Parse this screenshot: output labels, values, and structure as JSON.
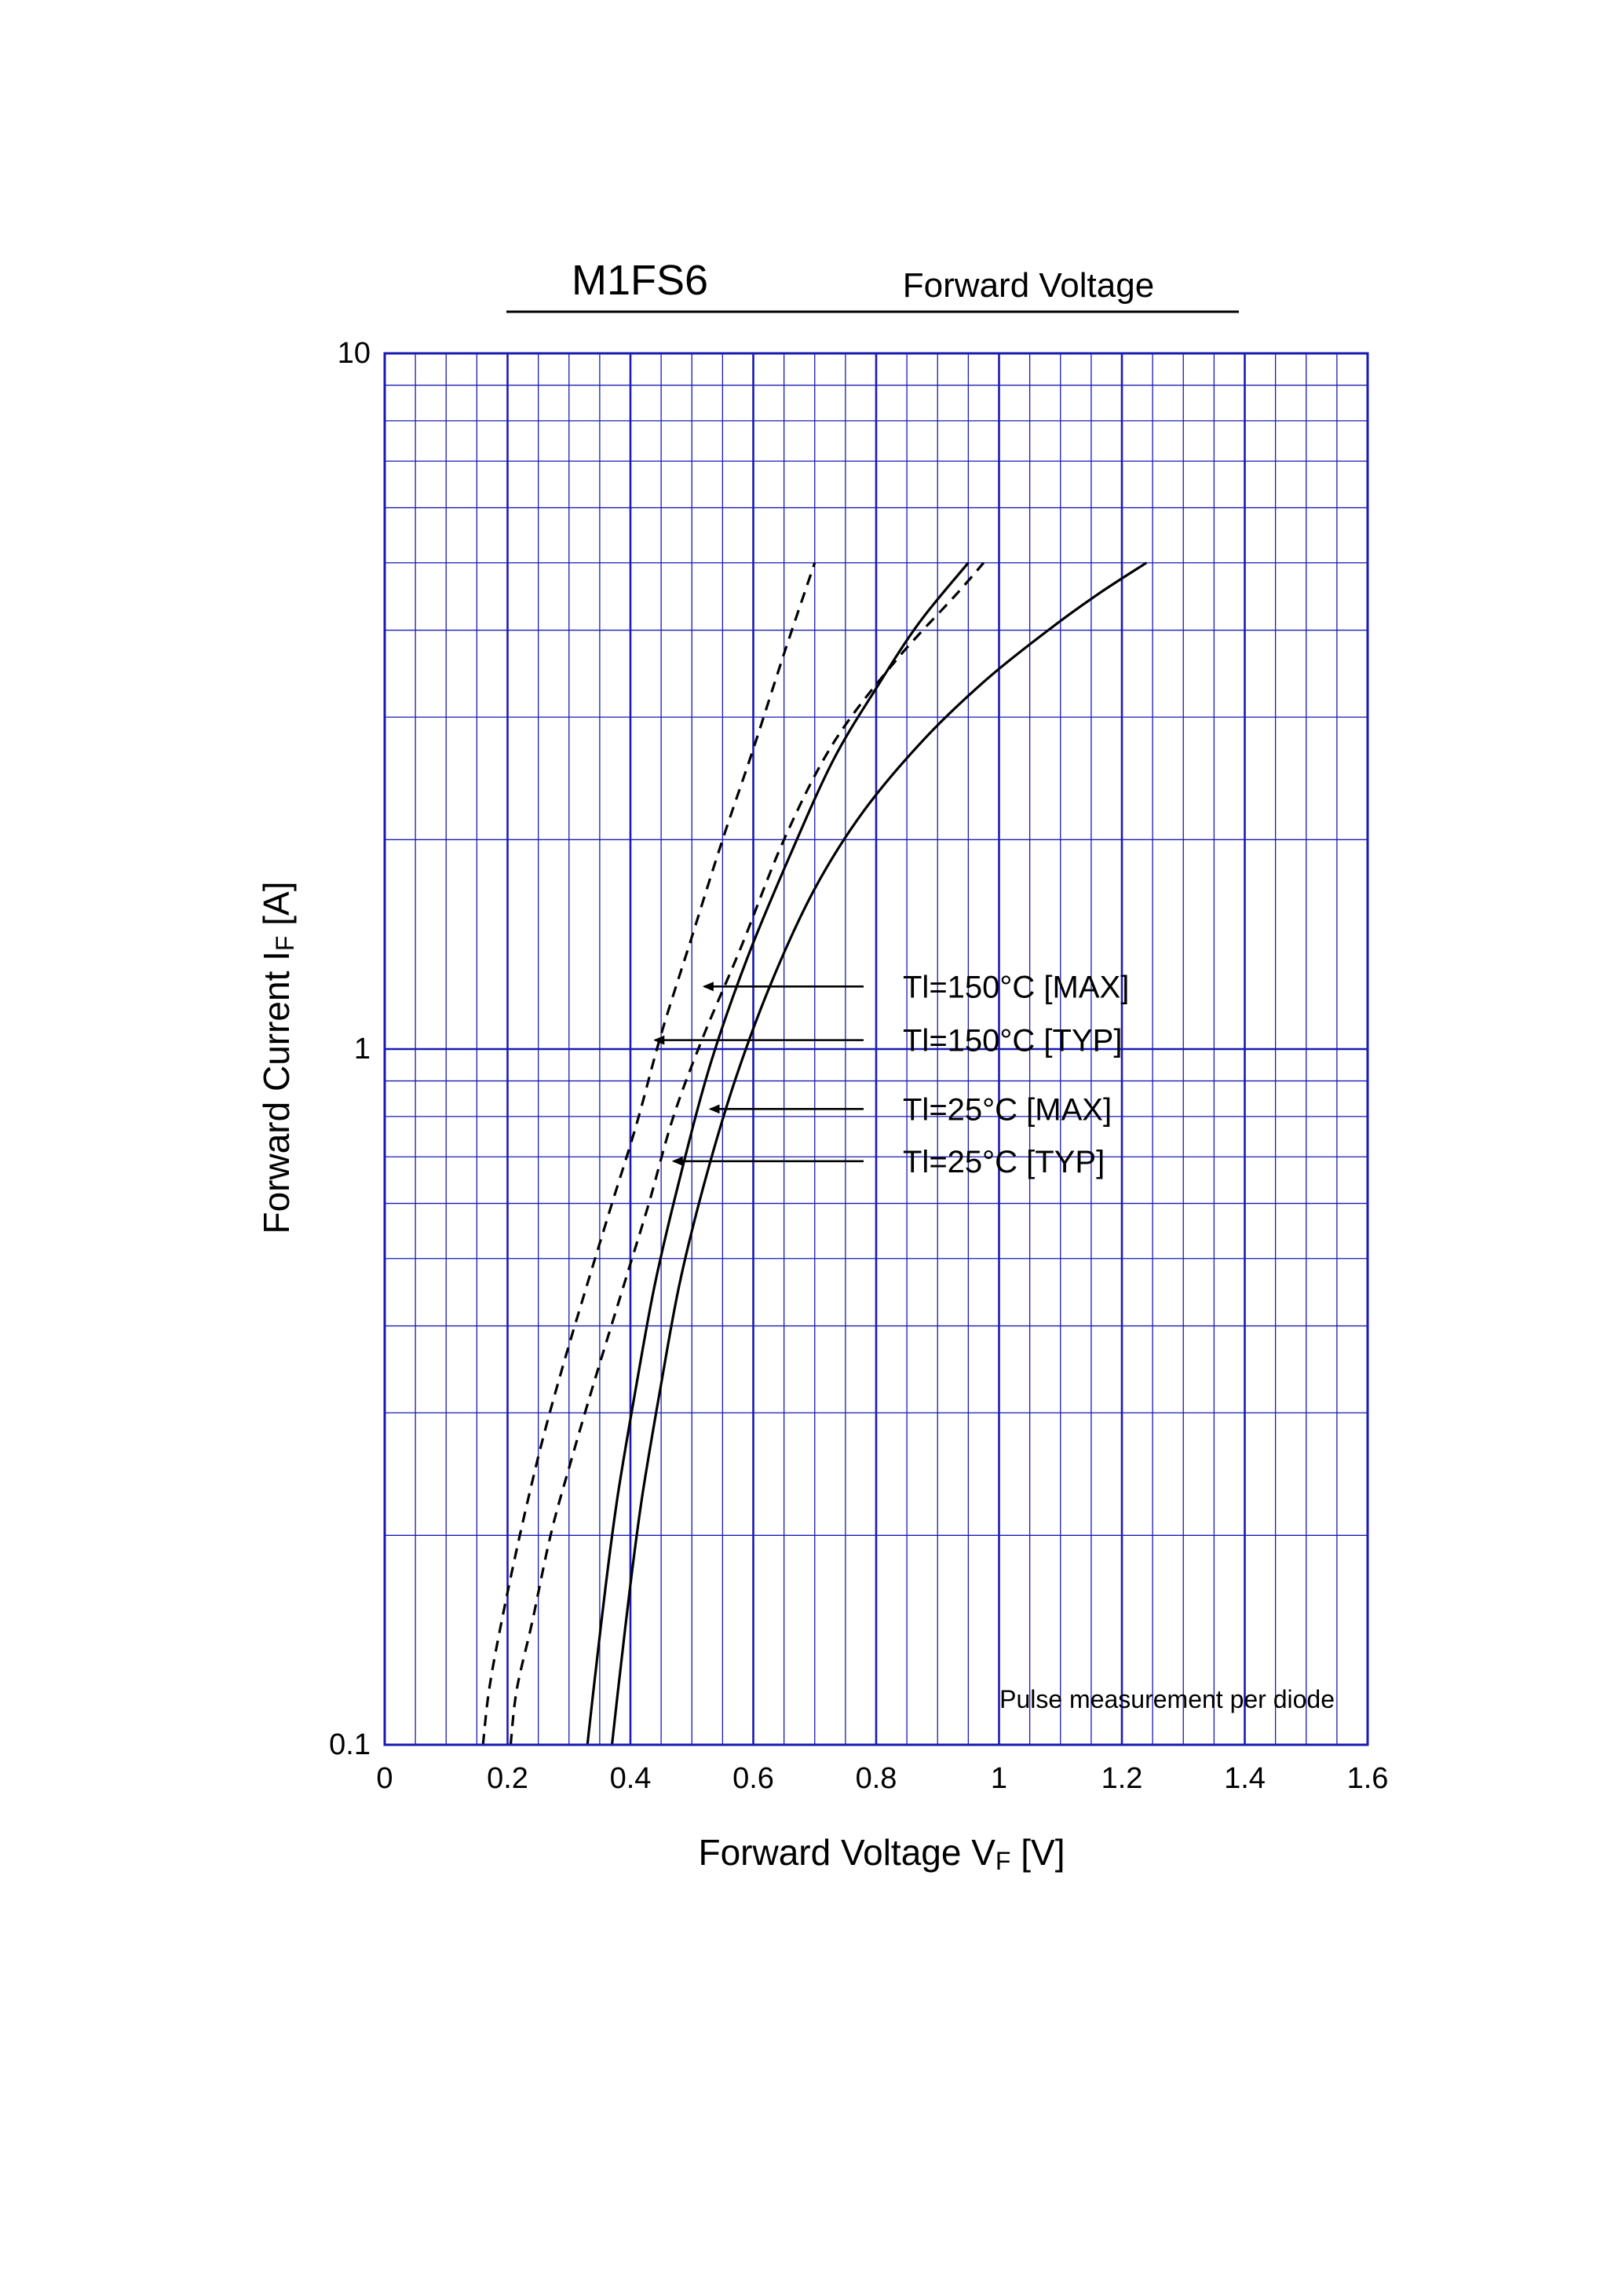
{
  "header": {
    "part_number": "M1FS6",
    "chart_title": "Forward Voltage"
  },
  "note": "Pulse measurement per diode",
  "chart_data": {
    "type": "line",
    "title": "Forward Voltage",
    "xlabel": {
      "main": "Forward Voltage  V",
      "sub": "F",
      "unit": "  [V]"
    },
    "ylabel": {
      "main": "Forward Current  I",
      "sub": "F",
      "unit": "  [A]"
    },
    "xlim": [
      0,
      1.6
    ],
    "ylim": [
      0.1,
      10
    ],
    "yscale": "log",
    "grid": true,
    "grid_color": "#1a1ab4",
    "x_ticks": [
      0,
      0.2,
      0.4,
      0.6,
      0.8,
      1.0,
      1.2,
      1.4,
      1.6
    ],
    "x_tick_labels": [
      "0",
      "0.2",
      "0.4",
      "0.6",
      "0.8",
      "1",
      "1.2",
      "1.4",
      "1.6"
    ],
    "y_tick_labels": [
      {
        "value": 0.1,
        "label": "0.1"
      },
      {
        "value": 1,
        "label": "1"
      },
      {
        "value": 10,
        "label": "10"
      }
    ],
    "series": [
      {
        "name": "Tl=150°C [MAX]",
        "dash": true,
        "x": [
          0.205,
          0.215,
          0.24,
          0.27,
          0.3,
          0.34,
          0.39,
          0.43,
          0.47,
          0.52,
          0.58,
          0.65,
          0.73,
          0.83,
          0.93,
          0.975
        ],
        "y": [
          0.1,
          0.12,
          0.15,
          0.2,
          0.25,
          0.33,
          0.46,
          0.6,
          0.8,
          1.05,
          1.4,
          2.0,
          2.75,
          3.6,
          4.5,
          5.0
        ]
      },
      {
        "name": "Tl=150°C [TYP]",
        "dash": true,
        "x": [
          0.16,
          0.17,
          0.19,
          0.22,
          0.255,
          0.29,
          0.33,
          0.37,
          0.41,
          0.45,
          0.5,
          0.55,
          0.6,
          0.65,
          0.7
        ],
        "y": [
          0.1,
          0.12,
          0.15,
          0.2,
          0.27,
          0.35,
          0.46,
          0.6,
          0.78,
          1.05,
          1.45,
          2.0,
          2.7,
          3.7,
          5.0
        ]
      },
      {
        "name": "Tl=25°C [MAX]",
        "dash": false,
        "x": [
          0.37,
          0.38,
          0.4,
          0.42,
          0.45,
          0.48,
          0.52,
          0.57,
          0.63,
          0.7,
          0.78,
          0.88,
          0.98,
          1.08,
          1.16,
          1.24
        ],
        "y": [
          0.1,
          0.12,
          0.17,
          0.23,
          0.33,
          0.46,
          0.64,
          0.9,
          1.25,
          1.7,
          2.2,
          2.8,
          3.4,
          4.0,
          4.5,
          5.0
        ]
      },
      {
        "name": "Tl=25°C [TYP]",
        "dash": false,
        "x": [
          0.33,
          0.34,
          0.36,
          0.38,
          0.41,
          0.44,
          0.48,
          0.53,
          0.59,
          0.66,
          0.73,
          0.8,
          0.87,
          0.95
        ],
        "y": [
          0.1,
          0.12,
          0.17,
          0.23,
          0.33,
          0.46,
          0.65,
          0.95,
          1.35,
          1.9,
          2.6,
          3.3,
          4.1,
          5.0
        ]
      }
    ],
    "annotations": [
      {
        "text": "Tl=150°C [MAX]",
        "point": [
          0.52,
          1.23
        ]
      },
      {
        "text": "Tl=150°C [TYP]",
        "point": [
          0.44,
          1.03
        ]
      },
      {
        "text": "Tl=25°C [MAX]",
        "point": [
          0.53,
          0.82
        ]
      },
      {
        "text": "Tl=25°C [TYP]",
        "point": [
          0.47,
          0.69
        ]
      }
    ]
  }
}
